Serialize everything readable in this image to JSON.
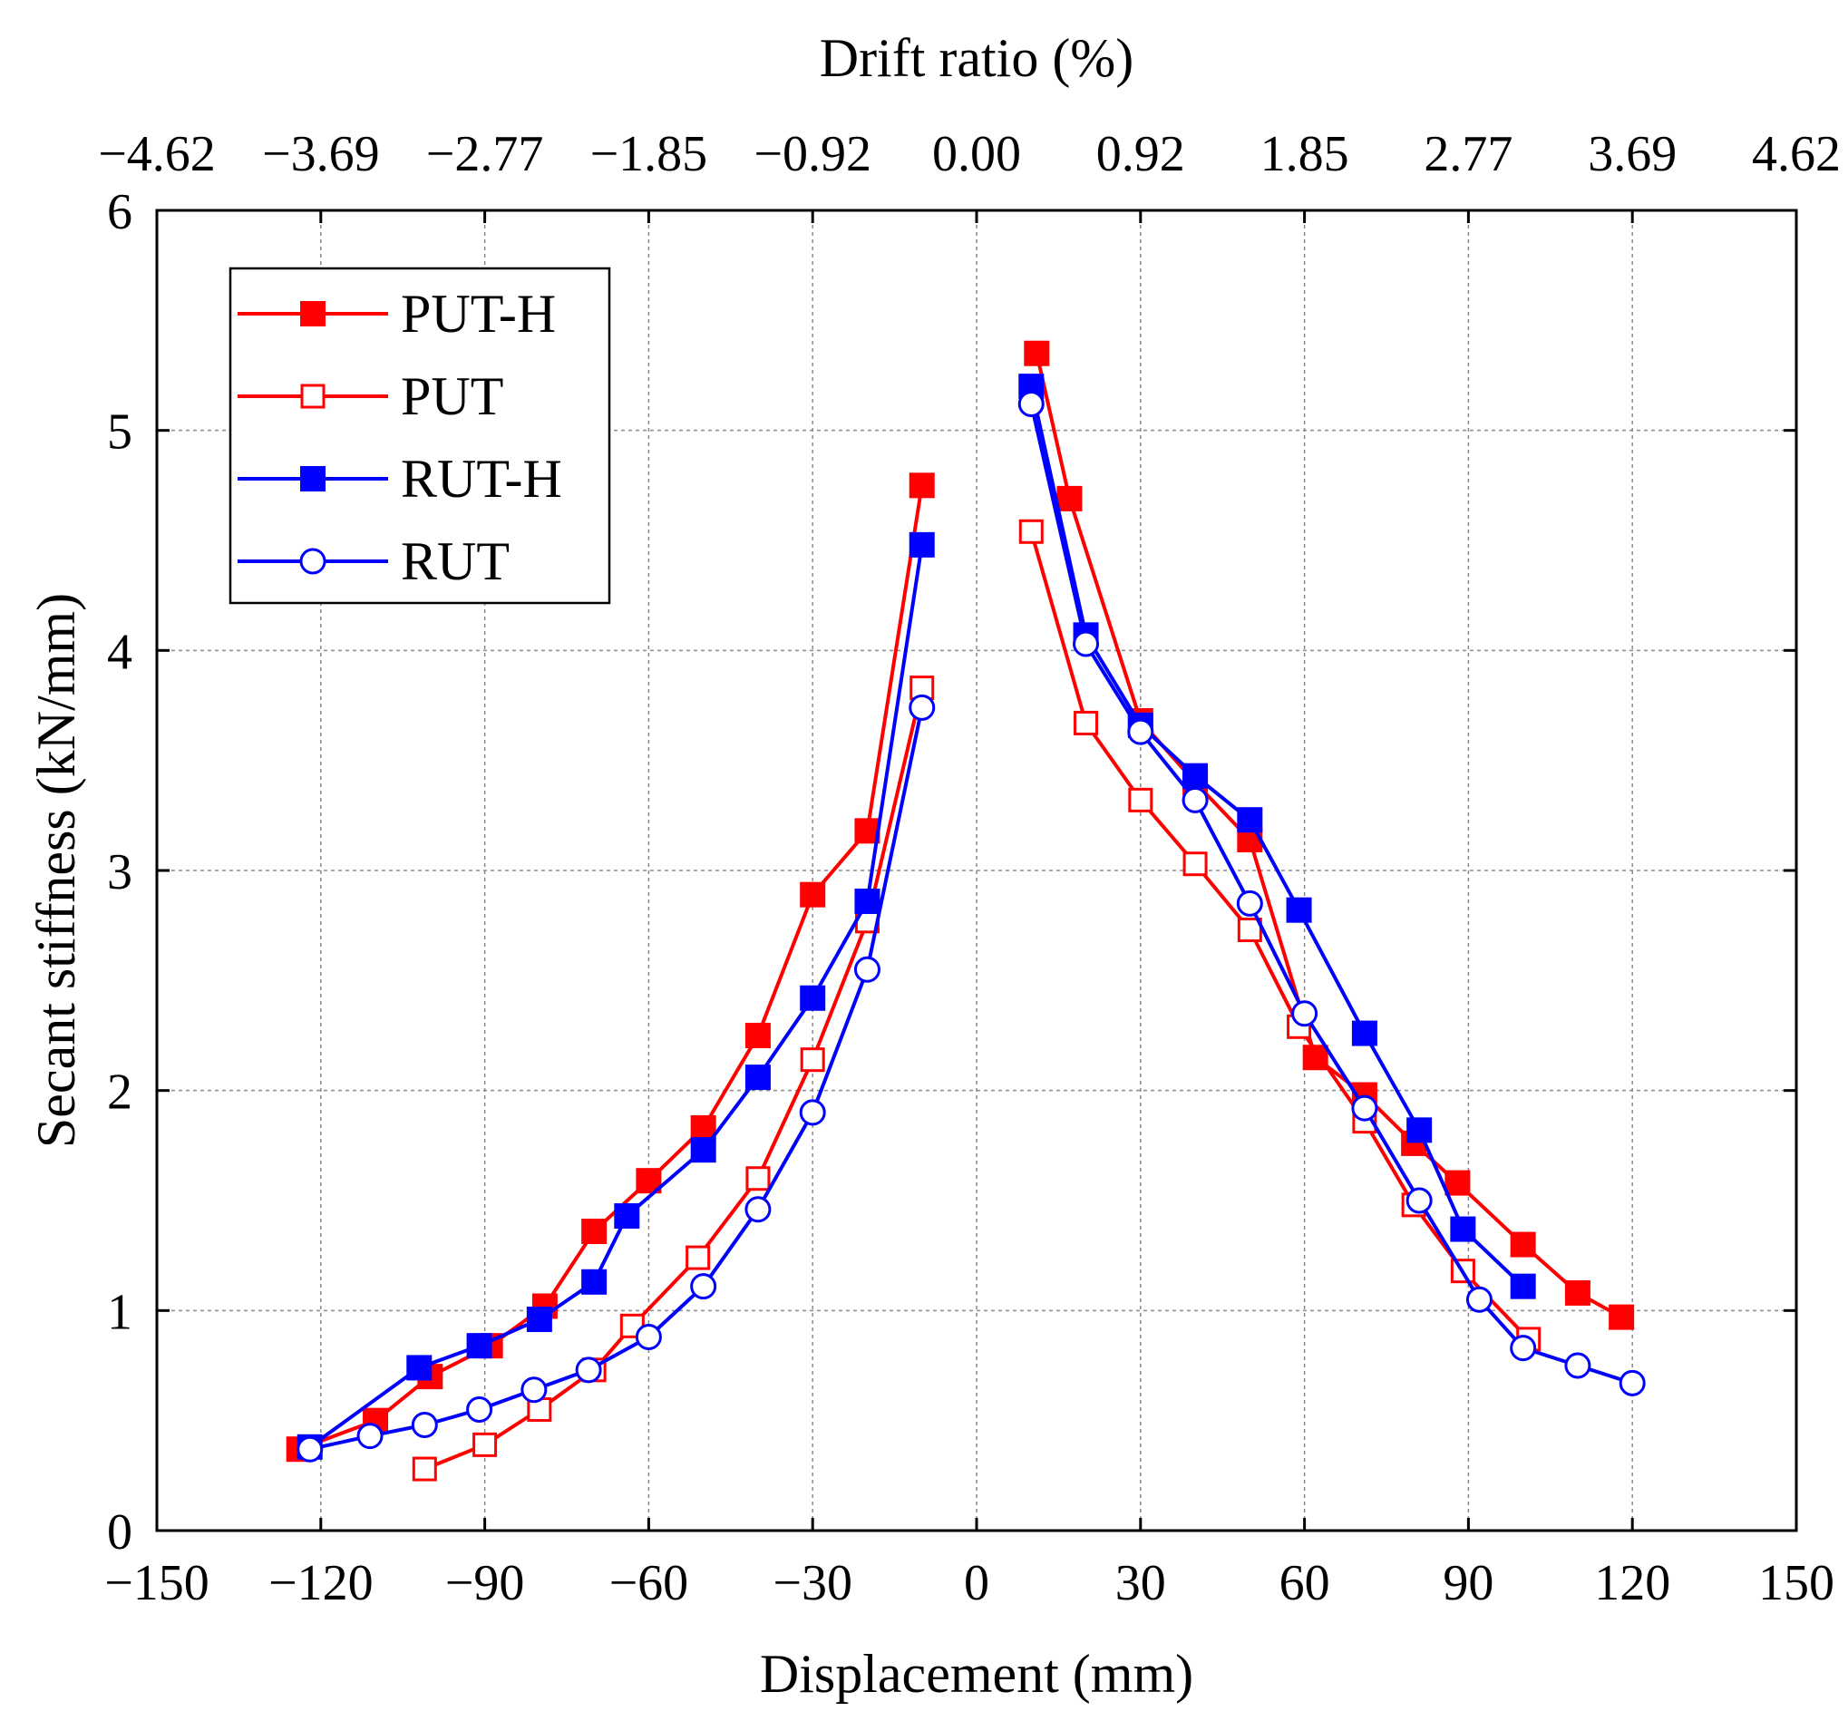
{
  "chart_data": {
    "type": "line",
    "title": "",
    "xlabel": "Displacement (mm)",
    "ylabel": "Secant stiffness (kN/mm)",
    "x2label": "Drift ratio (%)",
    "xlim": [
      -150,
      150
    ],
    "ylim": [
      0,
      6
    ],
    "x_ticks": [
      "−150",
      "−120",
      "−90",
      "−60",
      "−30",
      "0",
      "30",
      "60",
      "90",
      "120",
      "150"
    ],
    "y_ticks": [
      "0",
      "1",
      "2",
      "3",
      "4",
      "5",
      "6"
    ],
    "x2_ticks": [
      "−4.62",
      "−3.69",
      "−2.77",
      "−1.85",
      "−0.92",
      "0.00",
      "0.92",
      "1.85",
      "2.77",
      "3.69",
      "4.62"
    ],
    "grid": true,
    "legend_position": "top-left",
    "series": [
      {
        "name": "PUT-H",
        "color": "#ff0000",
        "marker": "filled-square",
        "segments": [
          {
            "x": [
              -10,
              -20,
              -30,
              -40,
              -50,
              -60,
              -70,
              -79,
              -89,
              -100,
              -110,
              -124
            ],
            "y": [
              4.75,
              3.18,
              2.89,
              2.25,
              1.83,
              1.59,
              1.36,
              1.02,
              0.84,
              0.7,
              0.5,
              0.37
            ]
          },
          {
            "x": [
              11,
              17,
              30,
              40,
              50,
              62,
              71,
              80,
              88,
              100,
              110,
              118
            ],
            "y": [
              5.35,
              4.69,
              3.68,
              3.4,
              3.14,
              2.15,
              1.98,
              1.76,
              1.58,
              1.3,
              1.08,
              0.97
            ]
          }
        ]
      },
      {
        "name": "PUT",
        "color": "#ff0000",
        "marker": "open-square",
        "segments": [
          {
            "x": [
              -10,
              -20,
              -30,
              -40,
              -51,
              -63,
              -70,
              -80,
              -90,
              -101
            ],
            "y": [
              3.83,
              2.77,
              2.14,
              1.6,
              1.24,
              0.93,
              0.73,
              0.55,
              0.39,
              0.28
            ]
          },
          {
            "x": [
              10,
              20,
              30,
              40,
              50,
              59,
              71,
              80,
              89,
              101
            ],
            "y": [
              4.54,
              3.67,
              3.32,
              3.03,
              2.73,
              2.29,
              1.86,
              1.48,
              1.18,
              0.87
            ]
          }
        ]
      },
      {
        "name": "RUT-H",
        "color": "#0000ff",
        "marker": "filled-square",
        "segments": [
          {
            "x": [
              -10,
              -20,
              -30,
              -40,
              -50,
              -64,
              -70,
              -80,
              -91,
              -102,
              -122
            ],
            "y": [
              4.48,
              2.86,
              2.42,
              2.06,
              1.73,
              1.43,
              1.13,
              0.96,
              0.84,
              0.74,
              0.38
            ]
          },
          {
            "x": [
              10,
              20,
              30,
              40,
              50,
              59,
              71,
              81,
              89,
              100
            ],
            "y": [
              5.2,
              4.07,
              3.66,
              3.43,
              3.23,
              2.82,
              2.26,
              1.82,
              1.37,
              1.11
            ]
          }
        ]
      },
      {
        "name": "RUT",
        "color": "#0000ff",
        "marker": "open-circle",
        "segments": [
          {
            "x": [
              -10,
              -20,
              -30,
              -40,
              -50,
              -60,
              -71,
              -81,
              -91,
              -101,
              -111,
              -122
            ],
            "y": [
              3.74,
              2.55,
              1.9,
              1.46,
              1.11,
              0.88,
              0.73,
              0.64,
              0.55,
              0.48,
              0.43,
              0.37
            ]
          },
          {
            "x": [
              10,
              20,
              30,
              40,
              50,
              60,
              71,
              81,
              92,
              100,
              110,
              120
            ],
            "y": [
              5.12,
              4.03,
              3.63,
              3.32,
              2.85,
              2.35,
              1.92,
              1.5,
              1.05,
              0.83,
              0.75,
              0.67
            ]
          }
        ]
      }
    ]
  }
}
